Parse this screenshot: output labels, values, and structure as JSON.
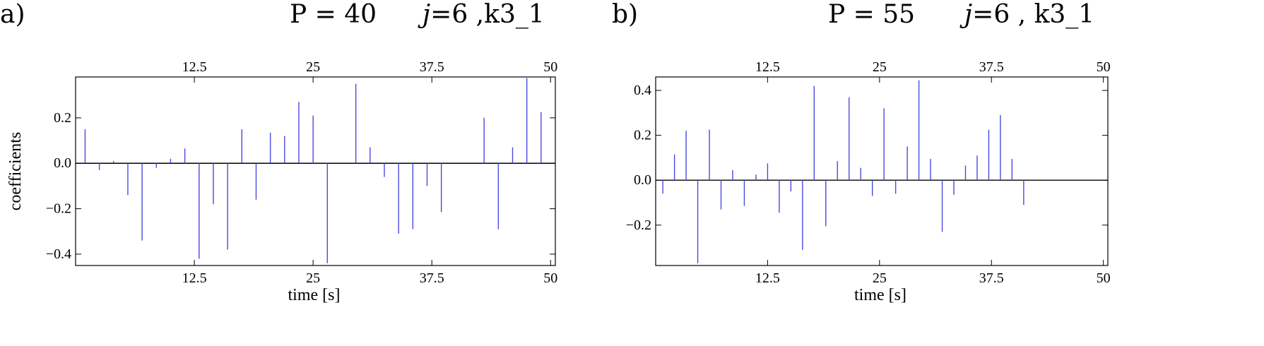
{
  "panels": [
    {
      "label": "a)",
      "title_p": "P = 40",
      "title_j_var": "j",
      "title_j_rest": "=6 ,k3_1"
    },
    {
      "label": "b)",
      "title_p": "P = 55",
      "title_j_var": "j",
      "title_j_rest": "=6 , k3_1"
    }
  ],
  "colors": {
    "stem": "#4a4ae0",
    "axis": "#000000"
  },
  "chart_data": [
    {
      "type": "stem",
      "title": "P = 40   j=6 ,k3_1",
      "xlabel": "time [s]",
      "ylabel": "coefficients",
      "xlim": [
        0,
        50.5
      ],
      "ylim": [
        -0.45,
        0.38
      ],
      "x_ticks": [
        12.5,
        25,
        37.5,
        50
      ],
      "x_tick_labels": [
        "12.5",
        "25",
        "37.5",
        "50"
      ],
      "y_ticks": [
        -0.4,
        -0.2,
        0.0,
        0.2
      ],
      "y_tick_labels": [
        "−0.4",
        "−0.2",
        "0.0",
        "0.2"
      ],
      "top_axis_ticks": true,
      "x": [
        1,
        2.5,
        4,
        5.5,
        7,
        8.5,
        10,
        11.5,
        13,
        14.5,
        16,
        17.5,
        19,
        20.5,
        22,
        23.5,
        25,
        26.5,
        28,
        29.5,
        31,
        32.5,
        34,
        35.5,
        37,
        38.5,
        40,
        41.5,
        43,
        44.5,
        46,
        47.5,
        49,
        50
      ],
      "values": [
        0.15,
        -0.03,
        0.01,
        -0.14,
        -0.34,
        -0.02,
        0.02,
        0.065,
        -0.42,
        -0.18,
        -0.38,
        0.15,
        -0.16,
        0.135,
        0.12,
        0.27,
        0.21,
        -0.44,
        0.0,
        0.35,
        0.07,
        -0.06,
        -0.31,
        -0.29,
        -0.1,
        -0.215,
        0.0,
        0.0,
        0.2,
        -0.29,
        0.07,
        0.375,
        0.225,
        0.0
      ]
    },
    {
      "type": "stem",
      "title": "P = 55   j=6 , k3_1",
      "xlabel": "time [s]",
      "ylabel": "coefficients",
      "xlim": [
        0,
        50.5
      ],
      "ylim": [
        -0.38,
        0.46
      ],
      "x_ticks": [
        12.5,
        25,
        37.5,
        50
      ],
      "x_tick_labels": [
        "12.5",
        "25",
        "37.5",
        "50"
      ],
      "y_ticks": [
        -0.2,
        0.0,
        0.2,
        0.4
      ],
      "y_tick_labels": [
        "−0.2",
        "0.0",
        "0.2",
        "0.4"
      ],
      "top_axis_ticks": true,
      "x": [
        0.8,
        2.1,
        3.4,
        4.7,
        6.0,
        7.3,
        8.6,
        9.9,
        11.2,
        12.5,
        13.8,
        15.1,
        16.4,
        17.7,
        19.0,
        20.3,
        21.6,
        22.9,
        24.2,
        25.5,
        26.8,
        28.1,
        29.4,
        30.7,
        32.0,
        33.3,
        34.6,
        35.9,
        37.2,
        38.5,
        39.8,
        41.1,
        42.4,
        43.7,
        45.0,
        46.3,
        47.6,
        48.9,
        50.2
      ],
      "values": [
        -0.06,
        0.115,
        0.22,
        -0.37,
        0.225,
        -0.13,
        0.045,
        -0.115,
        0.025,
        0.075,
        -0.145,
        -0.05,
        -0.31,
        0.42,
        -0.205,
        0.085,
        0.37,
        0.055,
        -0.07,
        0.32,
        -0.06,
        0.15,
        0.445,
        0.095,
        -0.23,
        -0.065,
        0.065,
        0.11,
        0.225,
        0.29,
        0.095,
        -0.11,
        0.0,
        0.0,
        0.0,
        0.0,
        0.0,
        0.0,
        0.0
      ]
    }
  ]
}
